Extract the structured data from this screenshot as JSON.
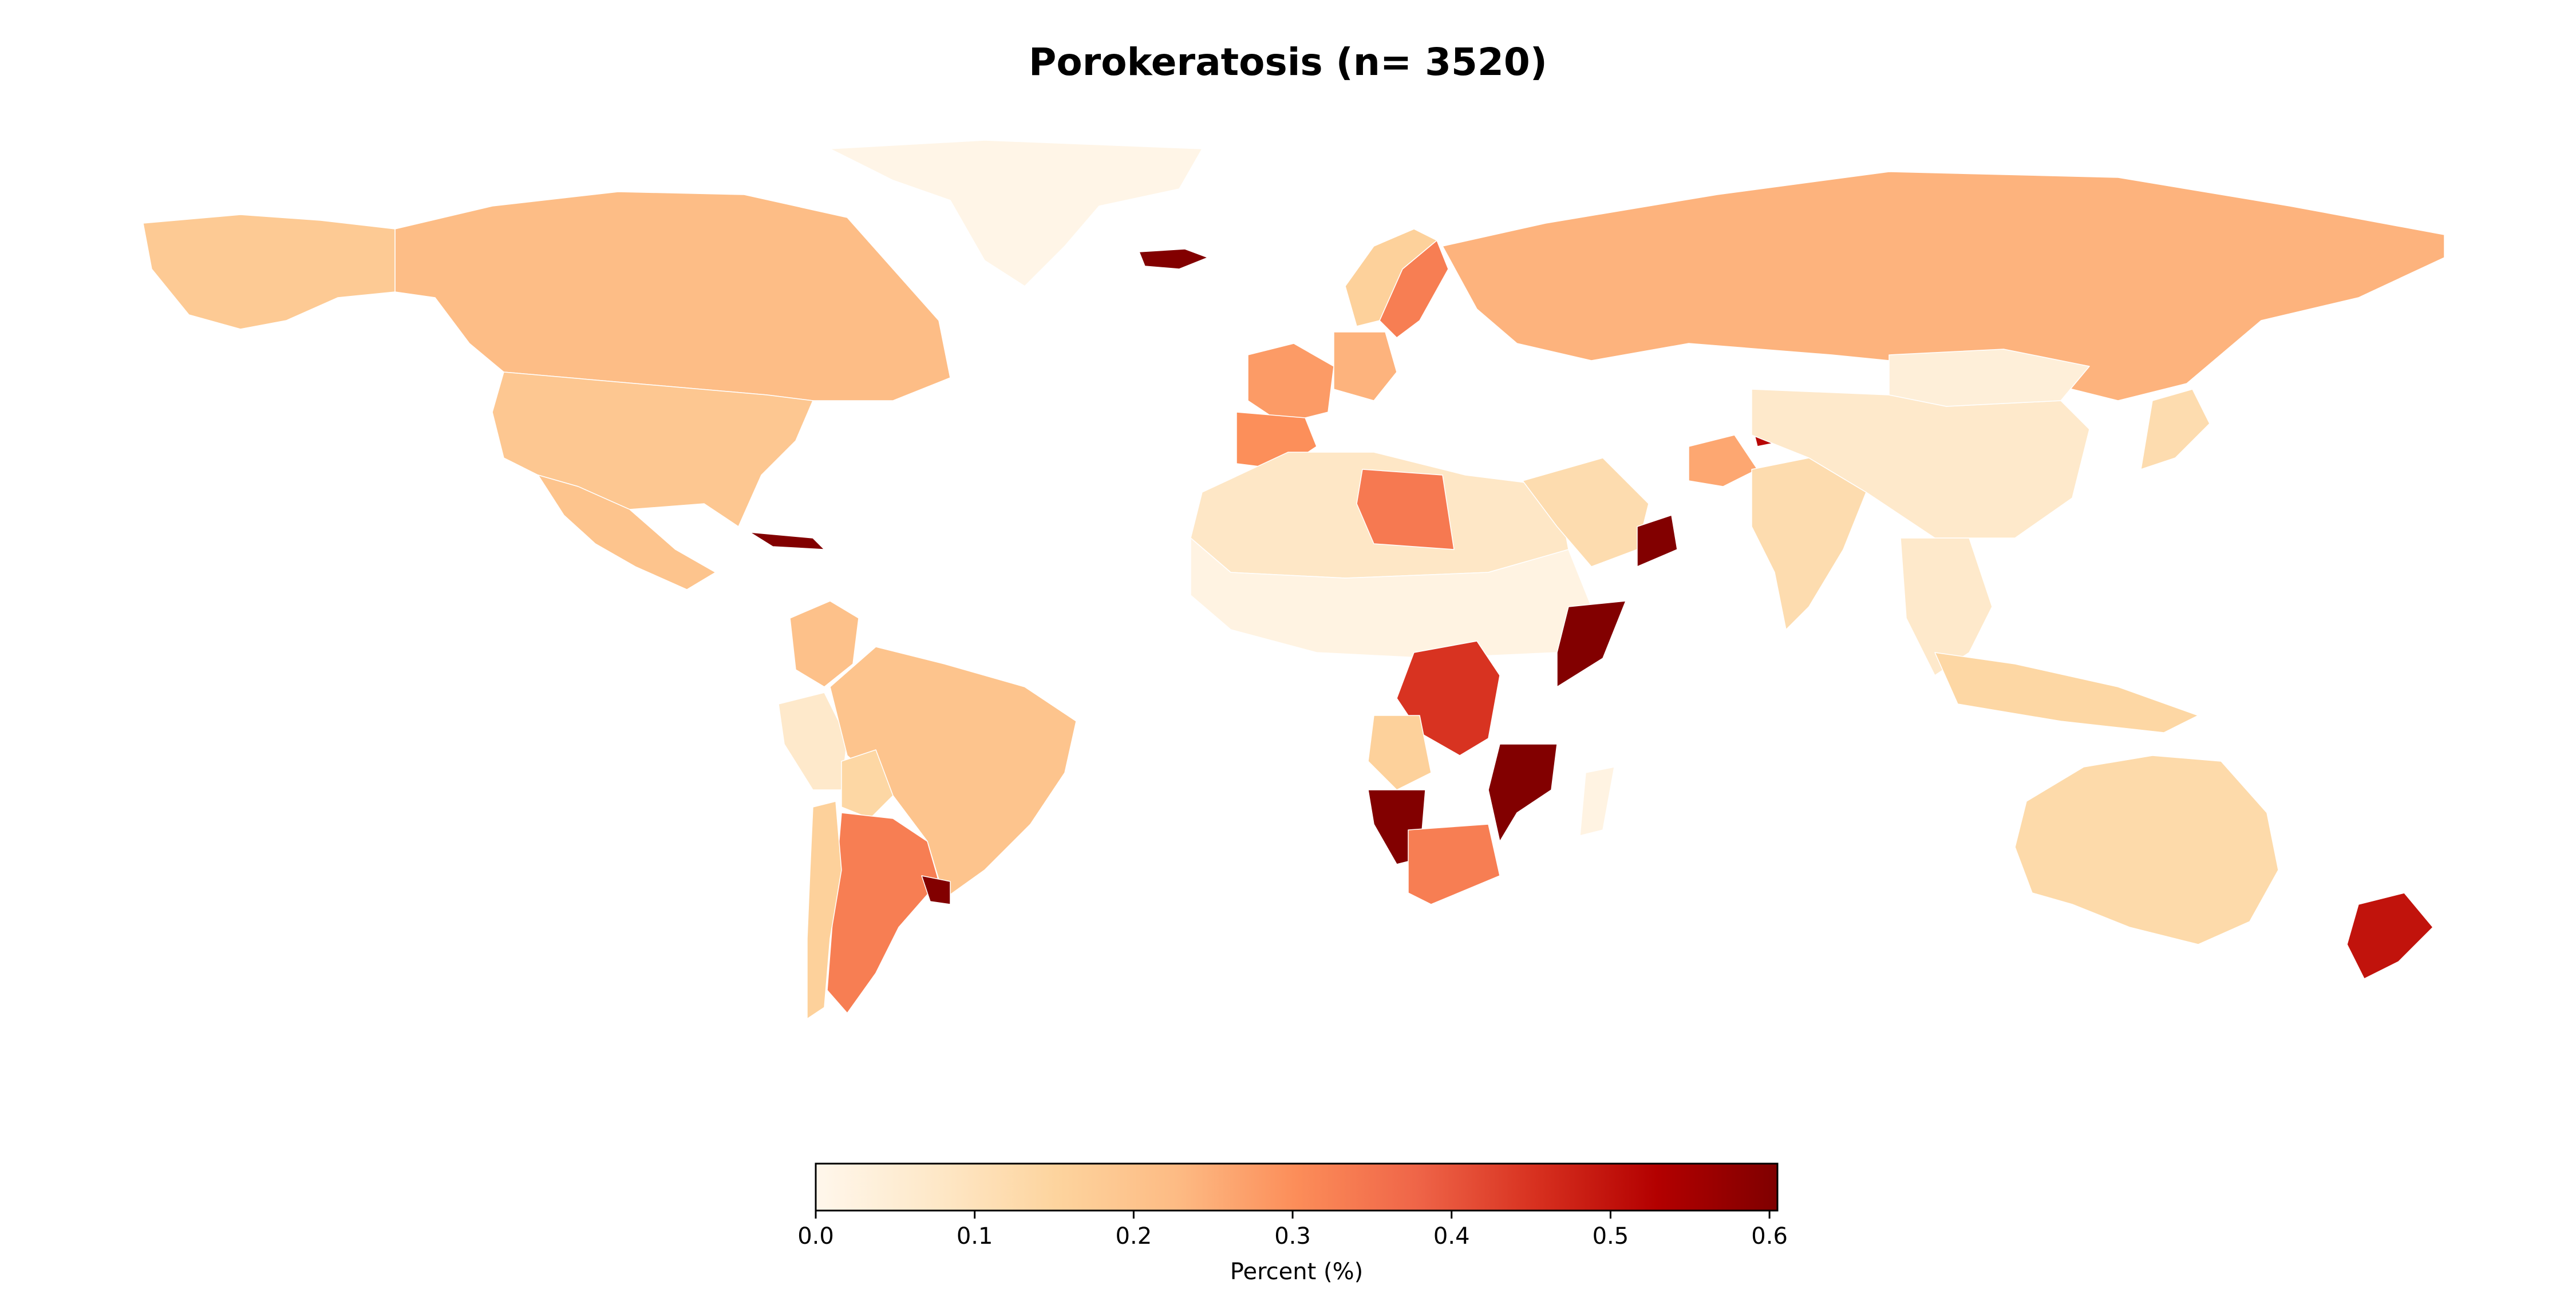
{
  "title": "Porokeratosis (n= 3520)",
  "colorbar": {
    "label": "Percent (%)",
    "min": 0.0,
    "max": 0.605,
    "ticks": [
      0.0,
      0.1,
      0.2,
      0.3,
      0.4,
      0.5,
      0.6
    ],
    "tick_labels": [
      "0.0",
      "0.1",
      "0.2",
      "0.3",
      "0.4",
      "0.5",
      "0.6"
    ],
    "colormap": "OrRd",
    "stops": [
      "#fff7ec",
      "#fee8c8",
      "#fdd49e",
      "#fdbb84",
      "#fc8d59",
      "#ef6548",
      "#d7301f",
      "#b30000",
      "#7f0000"
    ]
  },
  "chart_data": {
    "type": "choropleth",
    "title": "Porokeratosis (n= 3520)",
    "legend": "bottom colorbar",
    "value_label": "Percent (%)",
    "range": [
      0.0,
      0.605
    ],
    "regions": [
      {
        "name": "Greenland",
        "value": 0.01
      },
      {
        "name": "Canada",
        "value": 0.22
      },
      {
        "name": "United States",
        "value": 0.19
      },
      {
        "name": "Alaska",
        "value": 0.18
      },
      {
        "name": "Mexico",
        "value": 0.2
      },
      {
        "name": "Cuba",
        "value": 0.6
      },
      {
        "name": "Colombia",
        "value": 0.21
      },
      {
        "name": "Peru",
        "value": 0.07
      },
      {
        "name": "Brazil",
        "value": 0.2
      },
      {
        "name": "Bolivia",
        "value": 0.14
      },
      {
        "name": "Argentina",
        "value": 0.33
      },
      {
        "name": "Chile",
        "value": 0.16
      },
      {
        "name": "Uruguay",
        "value": 0.6
      },
      {
        "name": "Iceland",
        "value": 0.6
      },
      {
        "name": "Sweden",
        "value": 0.33
      },
      {
        "name": "Norway",
        "value": 0.16
      },
      {
        "name": "Russia",
        "value": 0.24
      },
      {
        "name": "France",
        "value": 0.28
      },
      {
        "name": "Spain",
        "value": 0.3
      },
      {
        "name": "Germany",
        "value": 0.24
      },
      {
        "name": "Africa North",
        "value": 0.08
      },
      {
        "name": "Libya",
        "value": 0.34
      },
      {
        "name": "Sahel",
        "value": 0.02
      },
      {
        "name": "DR Congo",
        "value": 0.45
      },
      {
        "name": "Angola",
        "value": 0.16
      },
      {
        "name": "Namibia",
        "value": 0.6
      },
      {
        "name": "Mozambique",
        "value": 0.6
      },
      {
        "name": "Somalia",
        "value": 0.6
      },
      {
        "name": "South Africa",
        "value": 0.33
      },
      {
        "name": "Madagascar",
        "value": 0.02
      },
      {
        "name": "Saudi Arabia",
        "value": 0.12
      },
      {
        "name": "Oman",
        "value": 0.6
      },
      {
        "name": "Afghanistan",
        "value": 0.26
      },
      {
        "name": "Tajikistan",
        "value": 0.52
      },
      {
        "name": "India",
        "value": 0.12
      },
      {
        "name": "China",
        "value": 0.07
      },
      {
        "name": "Mongolia",
        "value": 0.04
      },
      {
        "name": "Japan",
        "value": 0.12
      },
      {
        "name": "Southeast Asia",
        "value": 0.07
      },
      {
        "name": "Indonesia",
        "value": 0.14
      },
      {
        "name": "Australia",
        "value": 0.13
      },
      {
        "name": "New Zealand",
        "value": 0.5
      }
    ]
  }
}
